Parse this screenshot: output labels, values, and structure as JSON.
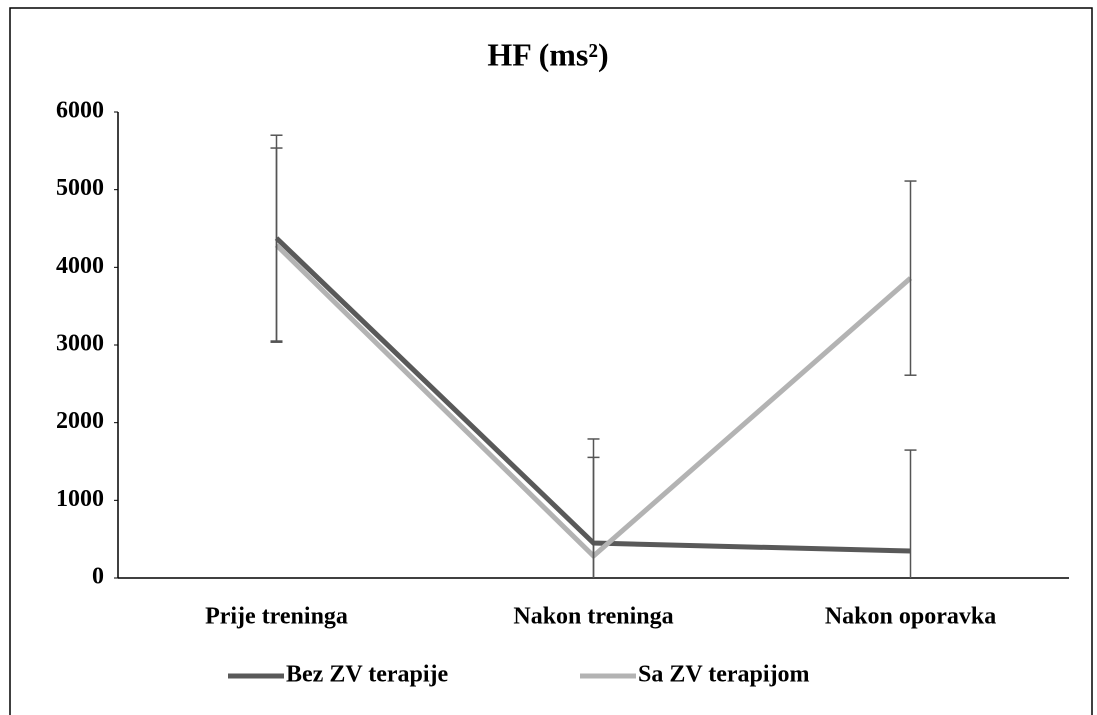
{
  "chart_data": {
    "type": "line",
    "title": "HF (ms²)",
    "categories": [
      "Prije treninga",
      "Nakon treninga",
      "Nakon oporavka"
    ],
    "series": [
      {
        "name": "Bez ZV terapije",
        "color": "#595959",
        "values": [
          4376,
          450,
          347
        ],
        "errors": [
          1325,
          1340,
          1300
        ]
      },
      {
        "name": "Sa ZV terapijom",
        "color": "#b3b3b3",
        "values": [
          4286,
          283,
          3861
        ],
        "errors": [
          1250,
          1270,
          1250
        ]
      }
    ],
    "ylim": [
      0,
      6000
    ],
    "yticks": [
      0,
      1000,
      2000,
      3000,
      4000,
      5000,
      6000
    ],
    "legend": "bottom"
  }
}
